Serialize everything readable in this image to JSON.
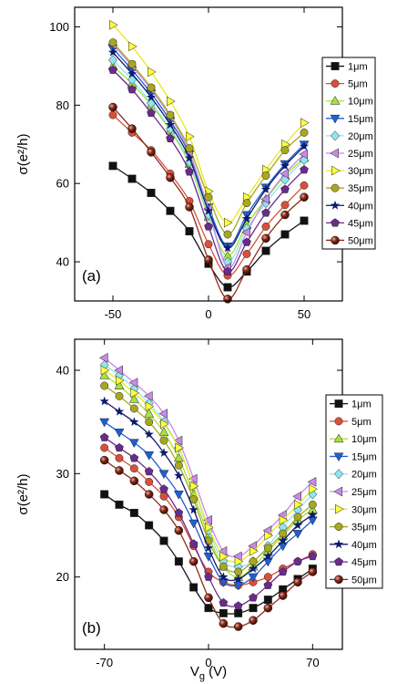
{
  "figure": {
    "ylabel": "σ(e²/h)",
    "xlabel": "V",
    "xlabel_sub": "g",
    "xlabel_unit": " (V)"
  },
  "series_style": [
    {
      "name": "1μm",
      "color": "#111111",
      "marker": "square"
    },
    {
      "name": "5μm",
      "color": "#d9503a",
      "marker": "circle"
    },
    {
      "name": "10μm",
      "color": "#a6e23a",
      "marker": "triangle-up"
    },
    {
      "name": "15μm",
      "color": "#1f5fd6",
      "marker": "triangle-down"
    },
    {
      "name": "20μm",
      "color": "#8fe6ee",
      "marker": "diamond"
    },
    {
      "name": "25μm",
      "color": "#c98ae8",
      "marker": "triangle-left"
    },
    {
      "name": "30μm",
      "color": "#ffff3a",
      "marker": "triangle-right"
    },
    {
      "name": "35μm",
      "color": "#a8a820",
      "marker": "circle"
    },
    {
      "name": "40μm",
      "color": "#0d1b6b",
      "marker": "star"
    },
    {
      "name": "45μm",
      "color": "#6a2b8c",
      "marker": "pentagon"
    },
    {
      "name": "50μm",
      "color": "#8b2a1a",
      "marker": "sphere"
    }
  ],
  "chart_data": [
    {
      "type": "line",
      "panel_label": "(a)",
      "ylabel": "σ(e²/h)",
      "xlabel": "",
      "xlim": [
        -70,
        70
      ],
      "ylim": [
        30,
        105
      ],
      "xticks": [
        -50,
        0,
        50
      ],
      "yticks": [
        40,
        60,
        80,
        100
      ],
      "legend_position": "top-right",
      "x": [
        -50,
        -40,
        -30,
        -20,
        -10,
        0,
        10,
        20,
        30,
        40,
        50
      ],
      "series": [
        {
          "name": "1μm",
          "values": [
            64.5,
            61.2,
            57.6,
            53.0,
            47.8,
            39.5,
            33.5,
            37.5,
            42.8,
            47.0,
            50.5
          ]
        },
        {
          "name": "5μm",
          "values": [
            77.5,
            73.0,
            68.5,
            62.5,
            55.5,
            44.5,
            36.5,
            42.0,
            49.0,
            54.5,
            59.5
          ]
        },
        {
          "name": "10μm",
          "values": [
            90.0,
            85.5,
            80.0,
            73.5,
            65.0,
            51.5,
            41.5,
            49.5,
            56.0,
            62.0,
            66.5
          ]
        },
        {
          "name": "15μm",
          "values": [
            94.5,
            89.0,
            83.0,
            76.0,
            67.5,
            54.0,
            44.0,
            52.0,
            59.0,
            65.0,
            70.0
          ]
        },
        {
          "name": "20μm",
          "values": [
            91.5,
            86.5,
            80.5,
            74.0,
            65.5,
            52.0,
            40.0,
            48.5,
            55.0,
            61.0,
            66.0
          ]
        },
        {
          "name": "25μm",
          "values": [
            95.5,
            90.0,
            84.0,
            77.0,
            68.0,
            53.5,
            38.5,
            47.5,
            56.0,
            62.5,
            67.5
          ]
        },
        {
          "name": "30μm",
          "values": [
            100.5,
            95.0,
            88.5,
            81.0,
            72.0,
            58.0,
            50.0,
            56.5,
            63.5,
            70.0,
            75.5
          ]
        },
        {
          "name": "35μm",
          "values": [
            96.0,
            90.5,
            84.5,
            77.5,
            69.0,
            56.5,
            47.0,
            55.0,
            62.0,
            68.5,
            73.0
          ]
        },
        {
          "name": "40μm",
          "values": [
            93.5,
            88.0,
            82.0,
            75.0,
            66.5,
            53.0,
            43.5,
            51.0,
            58.5,
            64.5,
            69.5
          ]
        },
        {
          "name": "45μm",
          "values": [
            89.0,
            84.0,
            78.0,
            71.5,
            63.0,
            49.0,
            37.5,
            45.0,
            52.5,
            58.5,
            63.5
          ]
        },
        {
          "name": "50μm",
          "values": [
            79.5,
            74.0,
            68.0,
            61.5,
            54.0,
            40.5,
            30.5,
            38.0,
            46.0,
            52.0,
            56.5
          ]
        }
      ]
    },
    {
      "type": "line",
      "panel_label": "(b)",
      "ylabel": "σ(e²/h)",
      "xlabel": "Vg (V)",
      "xlim": [
        -90,
        90
      ],
      "ylim": [
        13,
        43
      ],
      "xticks": [
        -70,
        0,
        70
      ],
      "yticks": [
        20,
        30,
        40
      ],
      "legend_position": "top-right",
      "x": [
        -70,
        -60,
        -50,
        -40,
        -30,
        -20,
        -10,
        0,
        10,
        20,
        30,
        40,
        50,
        60,
        70
      ],
      "series": [
        {
          "name": "1μm",
          "values": [
            28.0,
            27.0,
            26.2,
            25.0,
            23.5,
            21.5,
            19.0,
            17.0,
            16.5,
            16.5,
            17.0,
            17.8,
            18.8,
            19.8,
            20.8
          ]
        },
        {
          "name": "5μm",
          "values": [
            32.5,
            31.5,
            30.5,
            29.2,
            27.8,
            25.8,
            23.0,
            20.5,
            19.5,
            19.2,
            19.5,
            20.0,
            20.8,
            21.5,
            22.2
          ]
        },
        {
          "name": "10μm",
          "values": [
            39.5,
            38.5,
            37.2,
            35.8,
            34.0,
            31.5,
            28.0,
            24.0,
            21.0,
            20.0,
            21.0,
            22.5,
            24.0,
            25.5,
            26.5
          ]
        },
        {
          "name": "15μm",
          "values": [
            35.0,
            34.0,
            33.0,
            31.8,
            30.0,
            28.0,
            25.2,
            22.0,
            19.5,
            19.2,
            20.0,
            21.5,
            23.0,
            24.2,
            25.5
          ]
        },
        {
          "name": "20μm",
          "values": [
            40.5,
            39.5,
            38.2,
            36.8,
            35.0,
            32.5,
            28.8,
            24.5,
            21.5,
            21.0,
            21.5,
            23.0,
            24.8,
            26.5,
            28.0
          ]
        },
        {
          "name": "25μm",
          "values": [
            41.2,
            40.0,
            38.8,
            37.5,
            35.8,
            33.2,
            29.5,
            25.5,
            22.5,
            22.0,
            23.0,
            24.5,
            26.0,
            27.8,
            29.2
          ]
        },
        {
          "name": "30μm",
          "values": [
            40.0,
            39.0,
            37.8,
            36.5,
            34.8,
            32.5,
            28.8,
            24.8,
            22.0,
            21.5,
            22.5,
            24.0,
            25.5,
            27.0,
            28.5
          ]
        },
        {
          "name": "35μm",
          "values": [
            38.5,
            37.5,
            36.3,
            35.0,
            33.2,
            30.8,
            27.5,
            23.5,
            21.0,
            20.5,
            21.5,
            22.8,
            24.2,
            25.8,
            27.0
          ]
        },
        {
          "name": "40μm",
          "values": [
            37.0,
            36.0,
            35.0,
            33.8,
            32.0,
            29.8,
            26.5,
            22.8,
            20.0,
            19.8,
            20.8,
            22.0,
            23.5,
            25.0,
            26.0
          ]
        },
        {
          "name": "45μm",
          "values": [
            33.5,
            32.5,
            31.5,
            30.2,
            28.5,
            26.2,
            23.2,
            20.0,
            17.5,
            17.2,
            18.0,
            19.2,
            20.5,
            21.5,
            22.0
          ]
        },
        {
          "name": "50μm",
          "values": [
            31.3,
            30.3,
            29.3,
            28.0,
            26.5,
            24.5,
            21.5,
            18.0,
            15.5,
            15.2,
            15.8,
            17.0,
            18.2,
            19.5,
            20.5
          ]
        }
      ]
    }
  ]
}
